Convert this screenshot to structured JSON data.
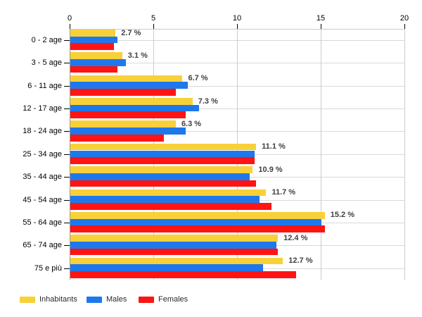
{
  "chart_data": {
    "type": "bar",
    "orientation": "horizontal",
    "title": "",
    "categories": [
      "0 - 2 age",
      "3 - 5 age",
      "6 - 11 age",
      "12 - 17 age",
      "18 - 24 age",
      "25 - 34 age",
      "35 - 44 age",
      "45 - 54 age",
      "55 - 64 age",
      "65 - 74 age",
      "75 e più"
    ],
    "series": [
      {
        "name": "Inhabitants",
        "color": "#F8D03A",
        "values": [
          2.7,
          3.1,
          6.7,
          7.3,
          6.3,
          11.1,
          10.9,
          11.7,
          15.2,
          12.4,
          12.7
        ]
      },
      {
        "name": "Males",
        "color": "#1E78EC",
        "values": [
          2.8,
          3.3,
          7.0,
          7.7,
          6.9,
          11.0,
          10.7,
          11.3,
          15.0,
          12.3,
          11.5
        ]
      },
      {
        "name": "Females",
        "color": "#FF1414",
        "values": [
          2.6,
          2.8,
          6.3,
          6.9,
          5.6,
          11.0,
          11.1,
          12.0,
          15.2,
          12.4,
          13.5
        ]
      }
    ],
    "value_labels": [
      "2.7 %",
      "3.1 %",
      "6.7 %",
      "7.3 %",
      "6.3 %",
      "11.1 %",
      "10.9 %",
      "11.7 %",
      "15.2 %",
      "12.4 %",
      "12.7 %"
    ],
    "value_labels_source_series": "Inhabitants",
    "x_ticks": [
      "0",
      "5",
      "10",
      "15",
      "20"
    ],
    "xlim": [
      0,
      20
    ],
    "grid": true,
    "legend_position": "bottom-left"
  },
  "colors": {
    "background": "#ffffff",
    "axis_line": "#999999",
    "vertical_grid": "#cccccc",
    "horizontal_grid": "#d9d9d9",
    "tick": "#000000",
    "value_label_text": "#404040"
  }
}
